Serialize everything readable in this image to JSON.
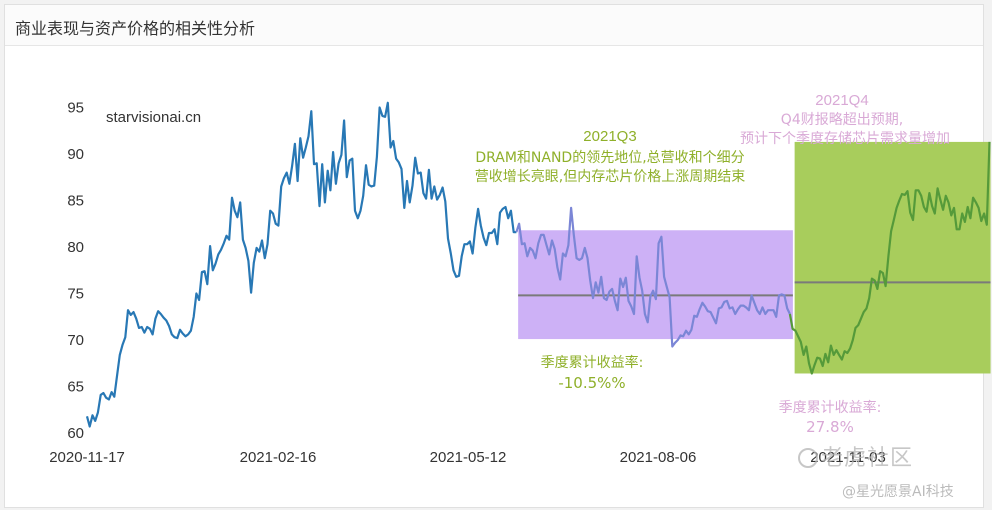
{
  "panel": {
    "title": "商业表现与资产价格的相关性分析"
  },
  "site_label": "starvisionai.cn",
  "watermarks": {
    "community": "老虎社区",
    "brand": "@星光愿景AI科技"
  },
  "chart_data": {
    "type": "line",
    "title": "",
    "xlabel": "",
    "ylabel": "",
    "ylim": [
      60,
      96
    ],
    "yticks": [
      60,
      65,
      70,
      75,
      80,
      85,
      90,
      95
    ],
    "xtick_labels": [
      "2020-11-17",
      "2021-02-16",
      "2021-05-12",
      "2021-08-06",
      "2021-11-03"
    ],
    "grid": false,
    "colors": {
      "line": "#2878b5",
      "q3_band": "#c8a8f5",
      "q4_band": "#a8cd5c",
      "q3_text": "#8fb02a",
      "q4_text": "#d9a9d6",
      "mean_line": "#7a7a7a",
      "q3_line": "#7b86d6",
      "q4_line": "#559a3a"
    },
    "series": [
      {
        "values": [
          61.8,
          60.7,
          61.9,
          61.3,
          62.2,
          64.1,
          64.3,
          63.8,
          63.6,
          64.4,
          63.9,
          66.2,
          68.4,
          69.5,
          70.3,
          73.2,
          72.7,
          73.0,
          72.3,
          71.3,
          71.4,
          70.8,
          71.4,
          71.2,
          70.6,
          72.3,
          73.1,
          72.8,
          72.4,
          72.1,
          71.5,
          70.6,
          70.3,
          70.2,
          71.1,
          70.7,
          70.4,
          70.6,
          71.0,
          72.5,
          75.0,
          74.3,
          77.3,
          77.4,
          76.0,
          80.1,
          77.5,
          78.2,
          79.2,
          79.7,
          80.4,
          81.2,
          80.8,
          85.3,
          83.9,
          83.2,
          84.8,
          80.8,
          79.9,
          78.5,
          75.1,
          78.3,
          79.9,
          79.5,
          80.7,
          78.8,
          80.3,
          83.9,
          83.6,
          82.5,
          82.3,
          86.5,
          87.4,
          88.0,
          86.8,
          88.7,
          91.1,
          87.1,
          91.7,
          89.6,
          90.7,
          91.9,
          94.6,
          88.9,
          89.0,
          84.4,
          88.9,
          84.8,
          88.2,
          86.1,
          90.2,
          86.8,
          89.0,
          89.9,
          93.6,
          87.5,
          89.3,
          89.5,
          83.9,
          83.1,
          83.9,
          85.5,
          88.8,
          86.7,
          86.5,
          86.6,
          89.7,
          95.0,
          94.1,
          94.0,
          95.5,
          90.7,
          91.4,
          89.5,
          89.1,
          88.4,
          84.2,
          87.1,
          84.8,
          86.6,
          89.6,
          87.9,
          88.0,
          85.8,
          85.2,
          88.3,
          85.2,
          86.5,
          85.1,
          85.6,
          86.4,
          84.9,
          80.9,
          79.3,
          77.5,
          76.8,
          76.9,
          79.0,
          80.3,
          80.3,
          80.6,
          79.3,
          82.1,
          84.1,
          82.3,
          81.0,
          80.2,
          81.5,
          81.5,
          81.9,
          80.3,
          83.7,
          84.1,
          84.3,
          83.1,
          83.9,
          81.6,
          81.6
        ]
      },
      {
        "name": "",
        "values": [
          82.5,
          80.3,
          80.4,
          79.0,
          79.9,
          79.6,
          78.8,
          80.4,
          81.3,
          81.3,
          80.2,
          79.2,
          80.7,
          79.8,
          77.8,
          76.5,
          79.3,
          79.0,
          80.2,
          84.2,
          81.3,
          78.8,
          78.6,
          78.8,
          79.9,
          78.8,
          76.4,
          74.5,
          76.2,
          75.1,
          76.8,
          74.5,
          74.3,
          75.2,
          75.5,
          74.2,
          73.2,
          76.6,
          75.7,
          76.7,
          74.2,
          73.6,
          72.8,
          79.0,
          76.7,
          75.3,
          72.8,
          71.9,
          74.7,
          75.3,
          74.4,
          80.4,
          81.1,
          76.8,
          75.7,
          74.6,
          69.3,
          69.7,
          70.0,
          70.5,
          70.4,
          71.0,
          70.6,
          71.1,
          72.6,
          72.5,
          73.3,
          74.0,
          73.6,
          73.1,
          73.0,
          72.4,
          71.8,
          73.4,
          73.5,
          74.1,
          74.2,
          73.4,
          73.5,
          72.8,
          73.3,
          73.7,
          73.7,
          73.5,
          73.2,
          74.8,
          74.0,
          73.2,
          72.8,
          73.5,
          72.8,
          73.2,
          73.2,
          73.2,
          72.5,
          74.8,
          74.9,
          74.8,
          73.4,
          72.8
        ]
      },
      {
        "name": "",
        "values": [
          71.2,
          71.0,
          70.4,
          69.8,
          68.4,
          69.3,
          67.5,
          66.4,
          67.3,
          68.1,
          68.0,
          67.2,
          68.5,
          67.6,
          69.4,
          68.4,
          68.9,
          68.4,
          67.9,
          68.8,
          68.6,
          69.1,
          70.0,
          71.3,
          71.6,
          72.3,
          73.0,
          73.4,
          74.5,
          76.6,
          76.4,
          75.5,
          77.4,
          77.2,
          75.8,
          79.0,
          81.7,
          82.9,
          84.2,
          85.0,
          85.7,
          85.6,
          86.0,
          83.7,
          82.9,
          86.1,
          86.1,
          85.5,
          84.3,
          83.8,
          85.8,
          84.4,
          83.6,
          86.3,
          85.1,
          84.0,
          85.5,
          84.8,
          83.4,
          84.2,
          81.9,
          81.9,
          83.6,
          82.7,
          84.3,
          83.1,
          85.3,
          84.8,
          84.2,
          82.8,
          83.6,
          82.4,
          91.3
        ]
      }
    ],
    "quarters": [
      {
        "label": "2021Q3",
        "comment": [
          "DRAM和NAND的领先地位,总营收和个细分",
          "营收增长亮眼,但内存芯片价格上涨周期结束"
        ],
        "return_label": "季度累计收益率:",
        "return_value": "-10.5%%",
        "band_ymin": 70.1,
        "band_ymax": 81.8,
        "mean": 74.8
      },
      {
        "label": "2021Q4",
        "comment": [
          "Q4财报略超出预期,",
          "预计下个季度存储芯片需求量增加"
        ],
        "return_label": "季度累计收益率:",
        "return_value": "27.8%",
        "band_ymin": 66.4,
        "band_ymax": 91.3,
        "mean": 76.2
      }
    ]
  }
}
